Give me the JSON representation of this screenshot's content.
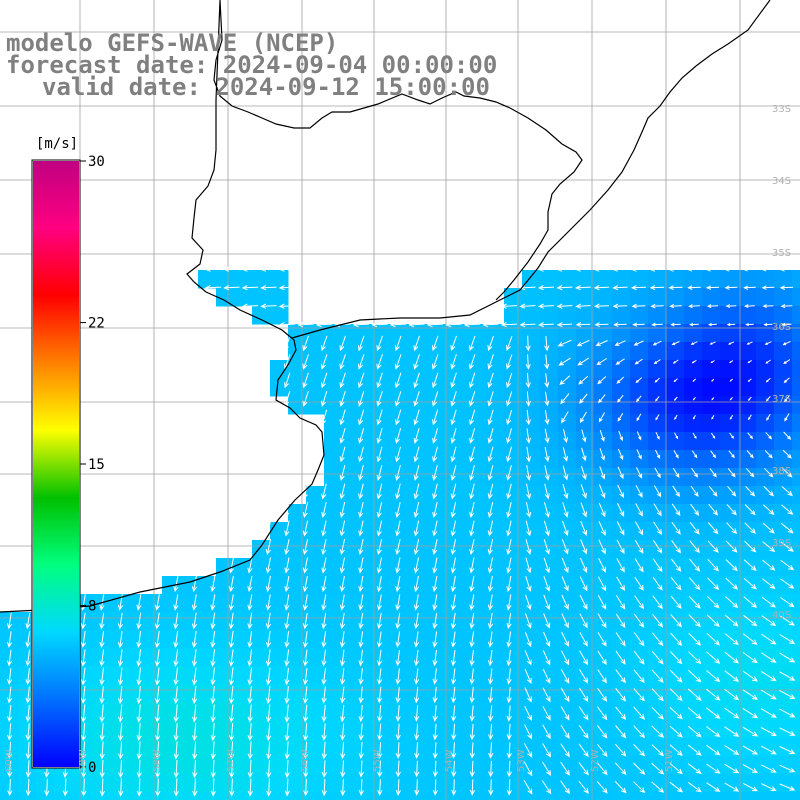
{
  "titles": {
    "model": "modelo GEFS-WAVE (NCEP)",
    "forecast": "forecast date: 2024-09-04 00:00:00",
    "valid": "valid date: 2024-09-12 15:00:00"
  },
  "colorbar": {
    "unit": "[m/s]",
    "ticks": [
      {
        "value": 30,
        "label": "30"
      },
      {
        "value": 22,
        "label": "22"
      },
      {
        "value": 15,
        "label": "15"
      },
      {
        "value": 8,
        "label": "8"
      },
      {
        "value": 0,
        "label": "0"
      }
    ],
    "min": 0,
    "max": 30,
    "colors": [
      "#0000ff",
      "#0070ff",
      "#00d8ff",
      "#00ff80",
      "#00c000",
      "#ffff00",
      "#ff8000",
      "#ff0000",
      "#ff0080",
      "#c00080"
    ]
  },
  "lat_labels": [
    "33S",
    "34S",
    "35S",
    "36S",
    "37S",
    "38S",
    "39S",
    "40S"
  ],
  "lon_labels": [
    "60W",
    "59W",
    "58W",
    "57W",
    "56W",
    "55W",
    "54W",
    "53W",
    "52W",
    "51W"
  ],
  "land_color": "#ffffff",
  "grid_color": "#a0a0a0"
}
